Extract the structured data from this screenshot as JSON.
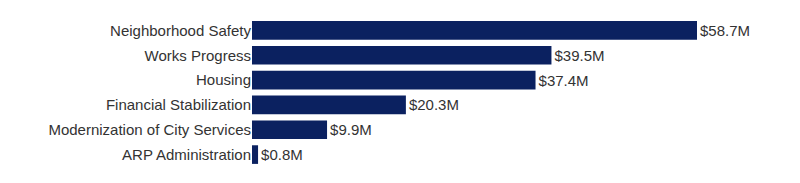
{
  "chart_data": {
    "type": "bar",
    "orientation": "horizontal",
    "categories": [
      "Neighborhood Safety",
      "Works Progress",
      "Housing",
      "Financial Stabilization",
      "Modernization of City Services",
      "ARP Administration"
    ],
    "values": [
      58.7,
      39.5,
      37.4,
      20.3,
      9.9,
      0.8
    ],
    "value_labels": [
      "$58.7M",
      "$39.5M",
      "$37.4M",
      "$20.3M",
      "$9.9M",
      "$0.8M"
    ],
    "color": "#0b2160",
    "xlim": [
      0,
      58.7
    ],
    "grid": false,
    "data_labels": true,
    "tick_labels": "y"
  }
}
